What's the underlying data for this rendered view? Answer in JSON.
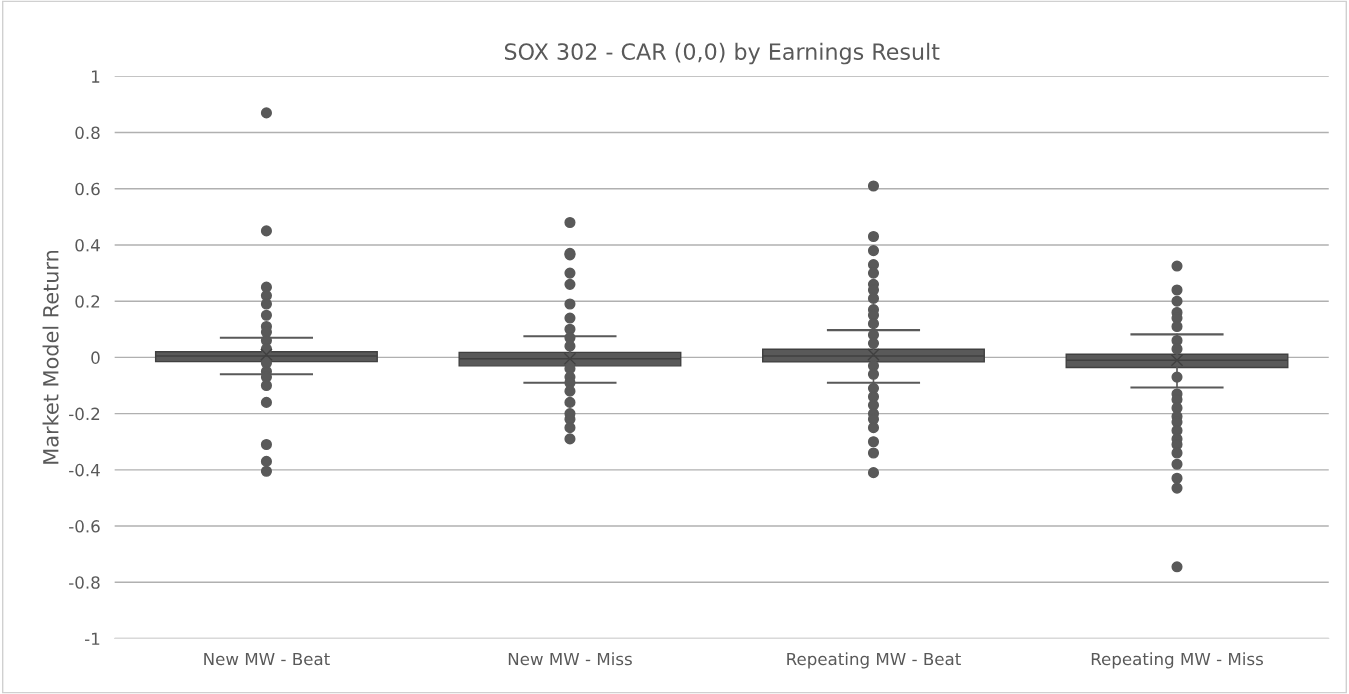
{
  "chart_data": {
    "type": "box",
    "title": "SOX 302 - CAR (0,0) by Earnings Result",
    "ylabel": "Market Model Return",
    "categories": [
      "New MW - Beat",
      "New MW - Miss",
      "Repeating MW - Beat",
      "Repeating MW - Miss"
    ],
    "color": "#595959",
    "marker": "circle",
    "grid": "y",
    "ylim": [
      -1,
      1
    ],
    "yticks": [
      -1,
      -0.8,
      -0.6,
      -0.4,
      -0.2,
      0,
      0.2,
      0.4,
      0.6,
      0.8,
      1
    ],
    "boxes": [
      {
        "low": -0.06,
        "q1": -0.015,
        "median": 0.005,
        "q3": 0.02,
        "high": 0.07,
        "mean": 0.01,
        "outliers": [
          0.87,
          0.45,
          0.25,
          0.22,
          0.19,
          0.15,
          0.11,
          0.09,
          0.06,
          0.03,
          -0.02,
          -0.05,
          -0.07,
          -0.1,
          -0.16,
          -0.31,
          -0.37,
          -0.405
        ]
      },
      {
        "low": -0.09,
        "q1": -0.03,
        "median": -0.005,
        "q3": 0.018,
        "high": 0.075,
        "mean": -0.005,
        "outliers": [
          0.48,
          0.37,
          0.365,
          0.3,
          0.26,
          0.19,
          0.14,
          0.1,
          0.07,
          0.04,
          -0.04,
          -0.07,
          -0.09,
          -0.12,
          -0.16,
          -0.2,
          -0.22,
          -0.25,
          -0.29
        ]
      },
      {
        "low": -0.09,
        "q1": -0.016,
        "median": 0.005,
        "q3": 0.029,
        "high": 0.097,
        "mean": 0.01,
        "outliers": [
          0.61,
          0.43,
          0.38,
          0.33,
          0.3,
          0.26,
          0.24,
          0.21,
          0.17,
          0.15,
          0.12,
          0.08,
          0.05,
          -0.03,
          -0.06,
          -0.11,
          -0.14,
          -0.17,
          -0.2,
          -0.22,
          -0.25,
          -0.3,
          -0.34,
          -0.41
        ]
      },
      {
        "low": -0.107,
        "q1": -0.036,
        "median": -0.01,
        "q3": 0.011,
        "high": 0.082,
        "mean": -0.01,
        "outliers": [
          0.325,
          0.24,
          0.2,
          0.16,
          0.14,
          0.11,
          0.06,
          0.03,
          -0.07,
          -0.13,
          -0.15,
          -0.18,
          -0.21,
          -0.23,
          -0.26,
          -0.29,
          -0.31,
          -0.34,
          -0.38,
          -0.43,
          -0.465,
          -0.745
        ]
      }
    ]
  }
}
